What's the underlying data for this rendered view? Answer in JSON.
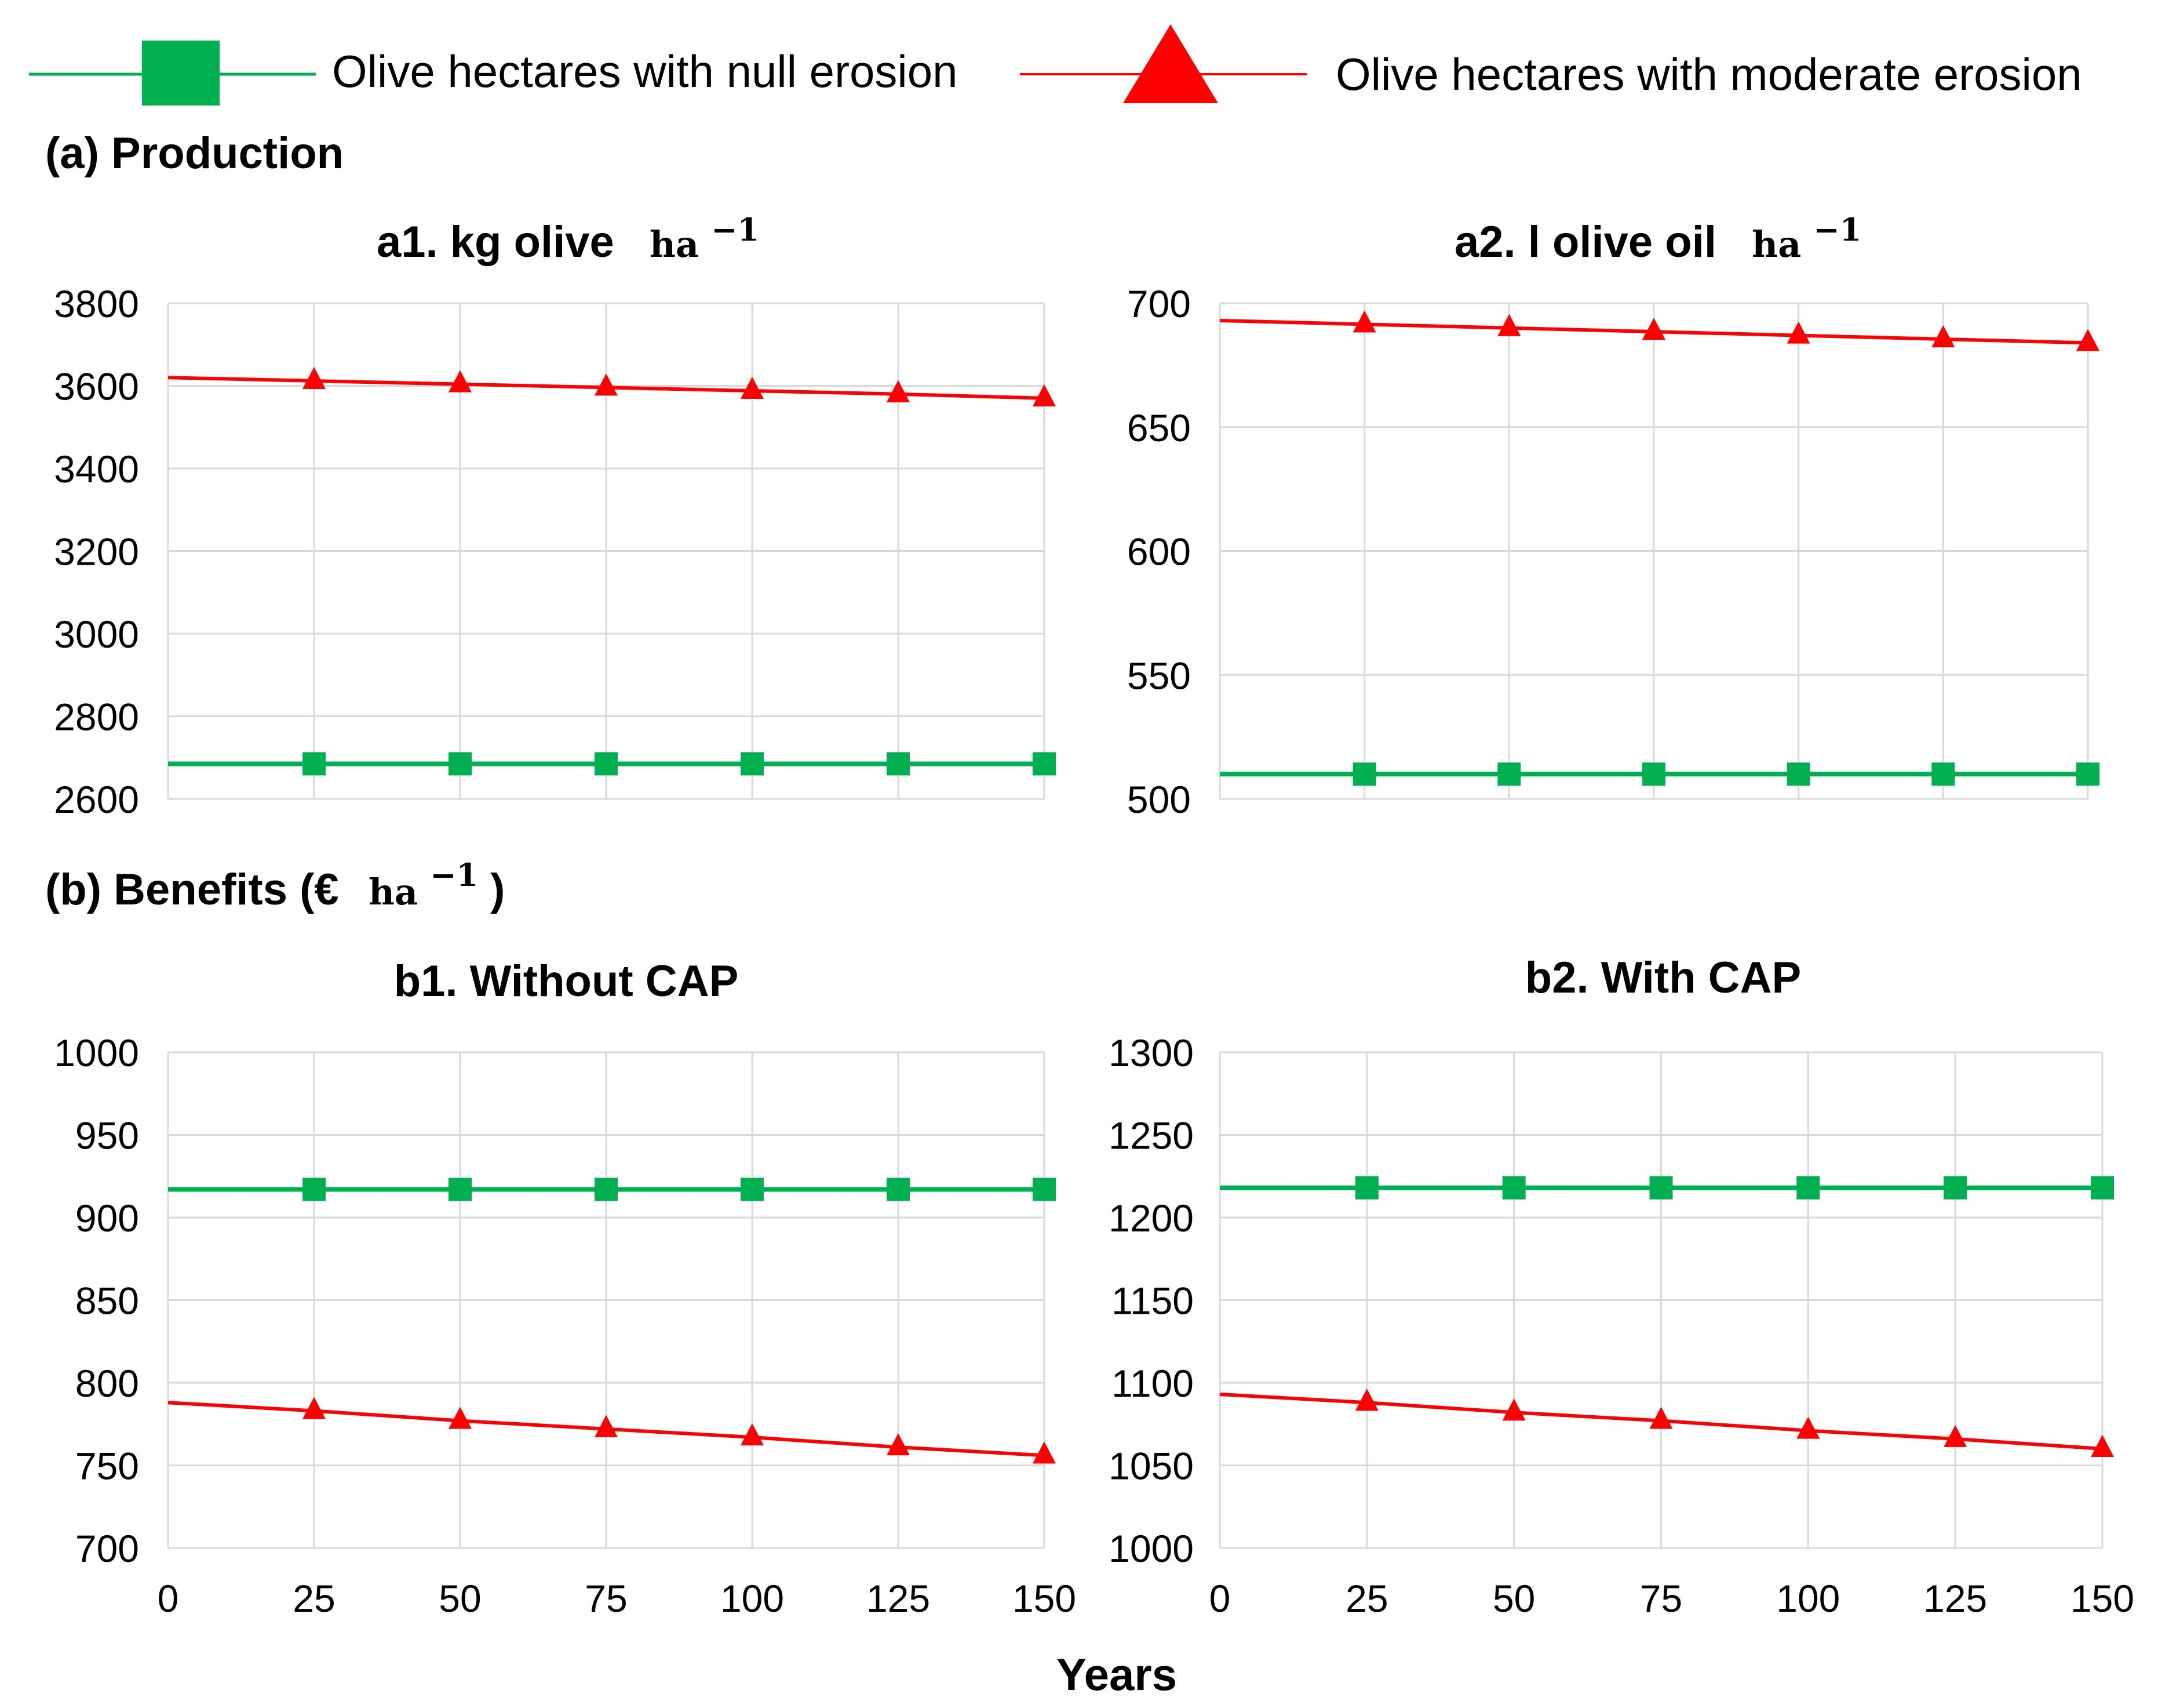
{
  "legend": {
    "null_label": "Olive hectares with null erosion",
    "moderate_label": "Olive hectares with moderate erosion"
  },
  "colors": {
    "null_series": "#00b050",
    "moderate_series": "#ff0000",
    "grid": "#d9d9d9"
  },
  "sections": {
    "production_heading": "(a) Production",
    "benefits_heading_prefix": "(b) Benefits (€",
    "benefits_heading_unit": "ha",
    "benefits_heading_exp": "−1",
    "benefits_heading_suffix": ")"
  },
  "x_axis_title": "Years",
  "chart_data": [
    {
      "id": "a1",
      "type": "line",
      "title": "a1. kg olive",
      "title_unit": "ha",
      "title_exp": "−1",
      "x": [
        0,
        25,
        50,
        75,
        100,
        125,
        150
      ],
      "xlim": [
        0,
        150
      ],
      "ylim": [
        2600,
        3800
      ],
      "yticks": [
        2600,
        2800,
        3000,
        3200,
        3400,
        3600,
        3800
      ],
      "show_x_tick_labels": false,
      "series": [
        {
          "name": "Olive hectares with null erosion",
          "marker": "square",
          "values": [
            2685,
            2685,
            2685,
            2685,
            2685,
            2685,
            2685
          ]
        },
        {
          "name": "Olive hectares with moderate erosion",
          "marker": "triangle",
          "values": [
            3620,
            3612,
            3604,
            3596,
            3588,
            3580,
            3570
          ]
        }
      ]
    },
    {
      "id": "a2",
      "type": "line",
      "title": "a2. l olive oil",
      "title_unit": "ha",
      "title_exp": "−1",
      "x": [
        0,
        25,
        50,
        75,
        100,
        125,
        150
      ],
      "xlim": [
        0,
        150
      ],
      "ylim": [
        500,
        700
      ],
      "yticks": [
        500,
        550,
        600,
        650,
        700
      ],
      "show_x_tick_labels": false,
      "series": [
        {
          "name": "Olive hectares with null erosion",
          "marker": "square",
          "values": [
            510,
            510,
            510,
            510,
            510,
            510,
            510
          ]
        },
        {
          "name": "Olive hectares with moderate erosion",
          "marker": "triangle",
          "values": [
            693,
            691.5,
            690,
            688.5,
            687,
            685.5,
            684
          ]
        }
      ]
    },
    {
      "id": "b1",
      "type": "line",
      "title": "b1. Without CAP",
      "x": [
        0,
        25,
        50,
        75,
        100,
        125,
        150
      ],
      "xlim": [
        0,
        150
      ],
      "ylim": [
        700,
        1000
      ],
      "yticks": [
        700,
        750,
        800,
        850,
        900,
        950,
        1000
      ],
      "show_x_tick_labels": true,
      "xticks": [
        0,
        25,
        50,
        75,
        100,
        125,
        150
      ],
      "series": [
        {
          "name": "Olive hectares with null erosion",
          "marker": "square",
          "values": [
            917,
            917,
            917,
            917,
            917,
            917,
            917
          ]
        },
        {
          "name": "Olive hectares with moderate erosion",
          "marker": "triangle",
          "values": [
            788,
            783,
            777,
            772,
            767,
            761,
            756
          ]
        }
      ]
    },
    {
      "id": "b2",
      "type": "line",
      "title": "b2. With CAP",
      "x": [
        0,
        25,
        50,
        75,
        100,
        125,
        150
      ],
      "xlim": [
        0,
        150
      ],
      "ylim": [
        1000,
        1300
      ],
      "yticks": [
        1000,
        1050,
        1100,
        1150,
        1200,
        1250,
        1300
      ],
      "show_x_tick_labels": true,
      "xticks": [
        0,
        25,
        50,
        75,
        100,
        125,
        150
      ],
      "series": [
        {
          "name": "Olive hectares with null erosion",
          "marker": "square",
          "values": [
            1218,
            1218,
            1218,
            1218,
            1218,
            1218,
            1218
          ]
        },
        {
          "name": "Olive hectares with moderate erosion",
          "marker": "triangle",
          "values": [
            1093,
            1088,
            1082,
            1077,
            1071,
            1066,
            1060
          ]
        }
      ]
    }
  ]
}
